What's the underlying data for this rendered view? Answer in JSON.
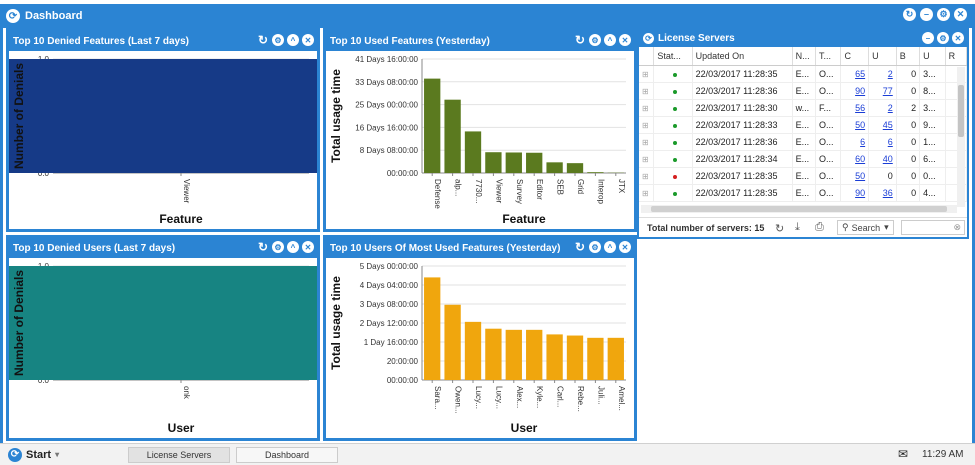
{
  "window": {
    "title": "Dashboard"
  },
  "panels": {
    "denied_features": {
      "title": "Top 10 Denied Features (Last 7 days)"
    },
    "used_features": {
      "title": "Top 10 Used Features (Yesterday)"
    },
    "denied_users": {
      "title": "Top 10 Denied Users (Last 7 days)"
    },
    "users_most_used": {
      "title": "Top 10 Users Of Most Used Features (Yesterday)"
    },
    "license_servers": {
      "title": "License Servers"
    }
  },
  "chart_data": [
    {
      "type": "bar",
      "title": "Top 10 Denied Features (Last 7 days)",
      "categories": [
        "Viewer"
      ],
      "values": [
        1.0
      ],
      "xlabel": "Feature",
      "ylabel": "Number of Denials",
      "ylim": [
        0,
        1.0
      ],
      "yticks": [
        "0.0",
        "0.2",
        "0.4",
        "0.6",
        "0.8",
        "1.0"
      ],
      "color": "#163a87"
    },
    {
      "type": "bar",
      "title": "Top 10 Used Features (Yesterday)",
      "categories": [
        "Defense",
        "alp...",
        "7730...",
        "Viewer",
        "Survey",
        "Editor",
        "SEB",
        "Grid",
        "Interop",
        "JTX"
      ],
      "values_days": [
        34.5,
        26.8,
        15.2,
        7.6,
        7.5,
        7.4,
        3.9,
        3.6,
        0.3,
        0.1
      ],
      "xlabel": "Feature",
      "ylabel": "Total usage time",
      "ylim": [
        0,
        41.67
      ],
      "yticks": [
        "00:00:00",
        "8 Days 08:00:00",
        "16 Days 16:00:00",
        "25 Days 00:00:00",
        "33 Days 08:00:00",
        "41 Days 16:00:00"
      ],
      "color": "#5b7a1f"
    },
    {
      "type": "bar",
      "title": "Top 10 Denied Users (Last 7 days)",
      "categories": [
        "onk"
      ],
      "values": [
        1.0
      ],
      "xlabel": "User",
      "ylabel": "Number of Denials",
      "ylim": [
        0,
        1.0
      ],
      "yticks": [
        "0.0",
        "0.2",
        "0.4",
        "0.6",
        "0.8",
        "1.0"
      ],
      "color": "#178482"
    },
    {
      "type": "bar",
      "title": "Top 10 Users Of Most Used Features (Yesterday)",
      "categories": [
        "Sara...",
        "Owen...",
        "Lucy...",
        "Lucy...",
        "Alex...",
        "Kyle...",
        "Carl...",
        "Rebe...",
        "Juli...",
        "Amel..."
      ],
      "values_days": [
        4.5,
        3.3,
        2.55,
        2.25,
        2.2,
        2.2,
        2.0,
        1.95,
        1.85,
        1.85
      ],
      "xlabel": "User",
      "ylabel": "Total usage time",
      "ylim": [
        0,
        5.0
      ],
      "yticks": [
        "00:00:00",
        "20:00:00",
        "1 Day 16:00:00",
        "2 Days 12:00:00",
        "3 Days 08:00:00",
        "4 Days 04:00:00",
        "5 Days 00:00:00"
      ],
      "color": "#f0a60d"
    }
  ],
  "license_servers": {
    "columns": [
      "Stat...",
      "Updated On",
      "N...",
      "T...",
      "C",
      "U",
      "B",
      "U",
      "R"
    ],
    "rows": [
      {
        "status": "green",
        "updated": "22/03/2017 11:28:35",
        "n": "E...",
        "t": "O...",
        "c": "65",
        "u": "2",
        "b": "0",
        "u2": "3...",
        "r": ""
      },
      {
        "status": "green",
        "updated": "22/03/2017 11:28:36",
        "n": "E...",
        "t": "O...",
        "c": "90",
        "u": "77",
        "b": "0",
        "u2": "8...",
        "r": ""
      },
      {
        "status": "green",
        "updated": "22/03/2017 11:28:30",
        "n": "w...",
        "t": "F...",
        "c": "56",
        "u": "2",
        "b": "2",
        "u2": "3...",
        "r": ""
      },
      {
        "status": "green",
        "updated": "22/03/2017 11:28:33",
        "n": "E...",
        "t": "O...",
        "c": "50",
        "u": "45",
        "b": "0",
        "u2": "9...",
        "r": ""
      },
      {
        "status": "green",
        "updated": "22/03/2017 11:28:36",
        "n": "E...",
        "t": "O...",
        "c": "6",
        "u": "6",
        "b": "0",
        "u2": "1...",
        "r": ""
      },
      {
        "status": "green",
        "updated": "22/03/2017 11:28:34",
        "n": "E...",
        "t": "O...",
        "c": "60",
        "u": "40",
        "b": "0",
        "u2": "6...",
        "r": ""
      },
      {
        "status": "red",
        "updated": "22/03/2017 11:28:35",
        "n": "E...",
        "t": "O...",
        "c": "50",
        "u": "0",
        "b": "0",
        "u2": "0...",
        "r": ""
      },
      {
        "status": "green",
        "updated": "22/03/2017 11:28:35",
        "n": "E...",
        "t": "O...",
        "c": "90",
        "u": "36",
        "b": "0",
        "u2": "4...",
        "r": ""
      }
    ],
    "footer": {
      "total_label": "Total number of servers: 15",
      "search_label": "Search"
    }
  },
  "taskbar": {
    "start_label": "Start",
    "tasks": [
      "License Servers",
      "Dashboard"
    ],
    "time": "11:29 AM"
  },
  "colors": {
    "accent": "#2b84d3",
    "status_green": "#1a9a2a",
    "status_red": "#d42020"
  }
}
